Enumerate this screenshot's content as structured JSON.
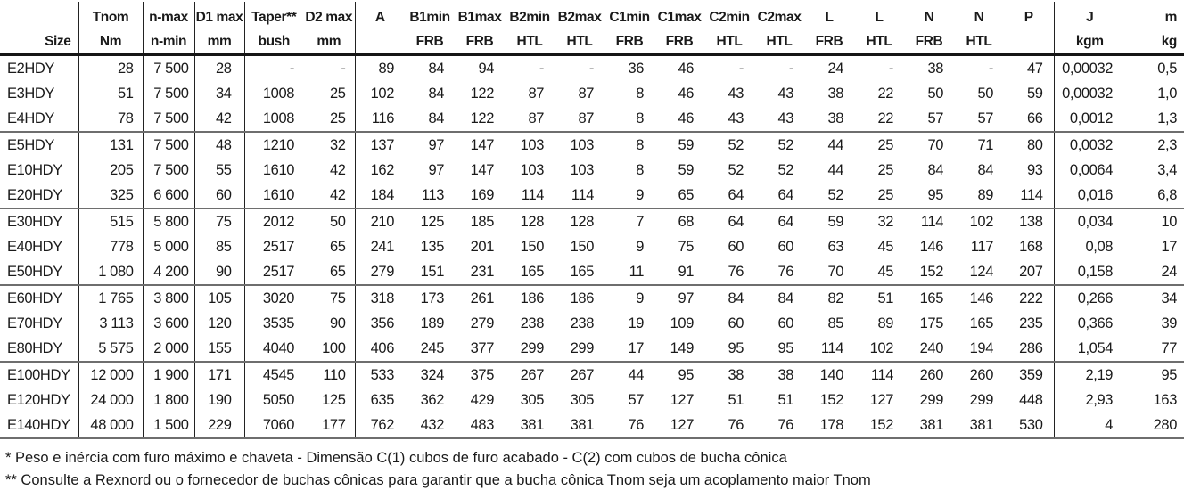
{
  "page": {
    "background": "#ffffff",
    "text_color": "#1a1a1a",
    "rule_color": "#222222",
    "separator_color": "#6e6e6e"
  },
  "table": {
    "column_ids": [
      "size",
      "tnom",
      "n-max",
      "d1-max",
      "taper",
      "d2-max",
      "a",
      "b1min",
      "b1max",
      "b2min",
      "b2max",
      "c1min",
      "c1max",
      "c2min",
      "c2max",
      "l-frb",
      "l-htl",
      "n-frb",
      "n-htl",
      "p",
      "j",
      "m"
    ],
    "header_row1": [
      "",
      "Tnom",
      "n-max",
      "D1 max",
      "Taper**",
      "D2 max",
      "A",
      "B1min",
      "B1max",
      "B2min",
      "B2max",
      "C1min",
      "C1max",
      "C2min",
      "C2max",
      "L",
      "L",
      "N",
      "N",
      "P",
      "J",
      "m"
    ],
    "header_row2": [
      "Size",
      "Nm",
      "n-min",
      "mm",
      "bush",
      "mm",
      "",
      "FRB",
      "FRB",
      "HTL",
      "HTL",
      "FRB",
      "FRB",
      "HTL",
      "HTL",
      "FRB",
      "HTL",
      "FRB",
      "HTL",
      "",
      "kgm",
      "kg"
    ],
    "rows": [
      [
        "E2HDY",
        "28",
        "7 500",
        "28",
        "-",
        "-",
        "89",
        "84",
        "94",
        "-",
        "-",
        "36",
        "46",
        "-",
        "-",
        "24",
        "-",
        "38",
        "-",
        "47",
        "0,00032",
        "0,5"
      ],
      [
        "E3HDY",
        "51",
        "7 500",
        "34",
        "1008",
        "25",
        "102",
        "84",
        "122",
        "87",
        "87",
        "8",
        "46",
        "43",
        "43",
        "38",
        "22",
        "50",
        "50",
        "59",
        "0,00032",
        "1,0"
      ],
      [
        "E4HDY",
        "78",
        "7 500",
        "42",
        "1008",
        "25",
        "116",
        "84",
        "122",
        "87",
        "87",
        "8",
        "46",
        "43",
        "43",
        "38",
        "22",
        "57",
        "57",
        "66",
        "0,0012",
        "1,3"
      ],
      [
        "E5HDY",
        "131",
        "7 500",
        "48",
        "1210",
        "32",
        "137",
        "97",
        "147",
        "103",
        "103",
        "8",
        "59",
        "52",
        "52",
        "44",
        "25",
        "70",
        "71",
        "80",
        "0,0032",
        "2,3"
      ],
      [
        "E10HDY",
        "205",
        "7 500",
        "55",
        "1610",
        "42",
        "162",
        "97",
        "147",
        "103",
        "103",
        "8",
        "59",
        "52",
        "52",
        "44",
        "25",
        "84",
        "84",
        "93",
        "0,0064",
        "3,4"
      ],
      [
        "E20HDY",
        "325",
        "6 600",
        "60",
        "1610",
        "42",
        "184",
        "113",
        "169",
        "114",
        "114",
        "9",
        "65",
        "64",
        "64",
        "52",
        "25",
        "95",
        "89",
        "114",
        "0,016",
        "6,8"
      ],
      [
        "E30HDY",
        "515",
        "5 800",
        "75",
        "2012",
        "50",
        "210",
        "125",
        "185",
        "128",
        "128",
        "7",
        "68",
        "64",
        "64",
        "59",
        "32",
        "114",
        "102",
        "138",
        "0,034",
        "10"
      ],
      [
        "E40HDY",
        "778",
        "5 000",
        "85",
        "2517",
        "65",
        "241",
        "135",
        "201",
        "150",
        "150",
        "9",
        "75",
        "60",
        "60",
        "63",
        "45",
        "146",
        "117",
        "168",
        "0,08",
        "17"
      ],
      [
        "E50HDY",
        "1 080",
        "4 200",
        "90",
        "2517",
        "65",
        "279",
        "151",
        "231",
        "165",
        "165",
        "11",
        "91",
        "76",
        "76",
        "70",
        "45",
        "152",
        "124",
        "207",
        "0,158",
        "24"
      ],
      [
        "E60HDY",
        "1 765",
        "3 800",
        "105",
        "3020",
        "75",
        "318",
        "173",
        "261",
        "186",
        "186",
        "9",
        "97",
        "84",
        "84",
        "82",
        "51",
        "165",
        "146",
        "222",
        "0,266",
        "34"
      ],
      [
        "E70HDY",
        "3 113",
        "3 600",
        "120",
        "3535",
        "90",
        "356",
        "189",
        "279",
        "238",
        "238",
        "19",
        "109",
        "60",
        "60",
        "85",
        "89",
        "175",
        "165",
        "235",
        "0,366",
        "39"
      ],
      [
        "E80HDY",
        "5 575",
        "2 000",
        "155",
        "4040",
        "100",
        "406",
        "245",
        "377",
        "299",
        "299",
        "17",
        "149",
        "95",
        "95",
        "114",
        "102",
        "240",
        "194",
        "286",
        "1,054",
        "77"
      ],
      [
        "E100HDY",
        "12 000",
        "1 900",
        "171",
        "4545",
        "110",
        "533",
        "324",
        "375",
        "267",
        "267",
        "44",
        "95",
        "38",
        "38",
        "140",
        "114",
        "260",
        "260",
        "359",
        "2,19",
        "95"
      ],
      [
        "E120HDY",
        "24 000",
        "1 800",
        "190",
        "5050",
        "125",
        "635",
        "362",
        "429",
        "305",
        "305",
        "57",
        "127",
        "51",
        "51",
        "152",
        "127",
        "299",
        "299",
        "448",
        "2,93",
        "163"
      ],
      [
        "E140HDY",
        "48 000",
        "1 500",
        "229",
        "7060",
        "177",
        "762",
        "432",
        "483",
        "381",
        "381",
        "76",
        "127",
        "76",
        "76",
        "178",
        "152",
        "381",
        "381",
        "530",
        "4",
        "280"
      ]
    ],
    "group_start_rows": [
      3,
      6,
      9,
      12
    ],
    "footnotes": [
      "* Peso e inércia com furo máximo e chaveta - Dimensão C(1) cubos de furo acabado - C(2) com cubos de bucha cônica",
      "** Consulte a Rexnord ou o fornecedor de buchas cônicas para garantir que a bucha cônica Tnom seja um acoplamento maior Tnom"
    ]
  }
}
